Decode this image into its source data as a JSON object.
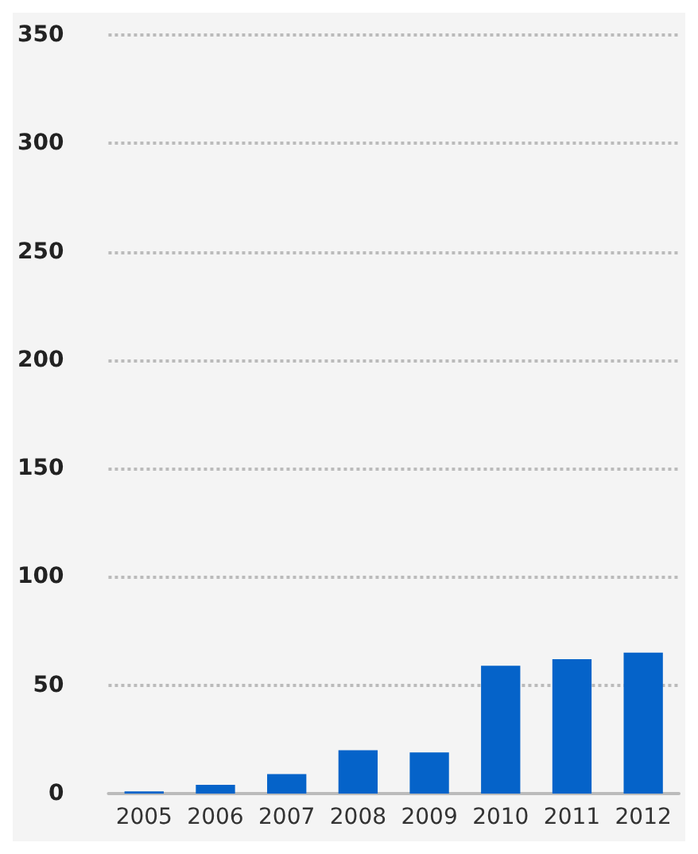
{
  "chart_data": {
    "type": "bar",
    "categories": [
      "2005",
      "2006",
      "2007",
      "2008",
      "2009",
      "2010",
      "2011",
      "2012"
    ],
    "values": [
      1,
      4,
      9,
      20,
      19,
      59,
      62,
      65
    ],
    "color": "#0563c9",
    "ylim": [
      0,
      350
    ],
    "yticks": [
      0,
      50,
      100,
      150,
      200,
      250,
      300,
      350
    ],
    "grid": "y",
    "line_style": "dotted"
  }
}
